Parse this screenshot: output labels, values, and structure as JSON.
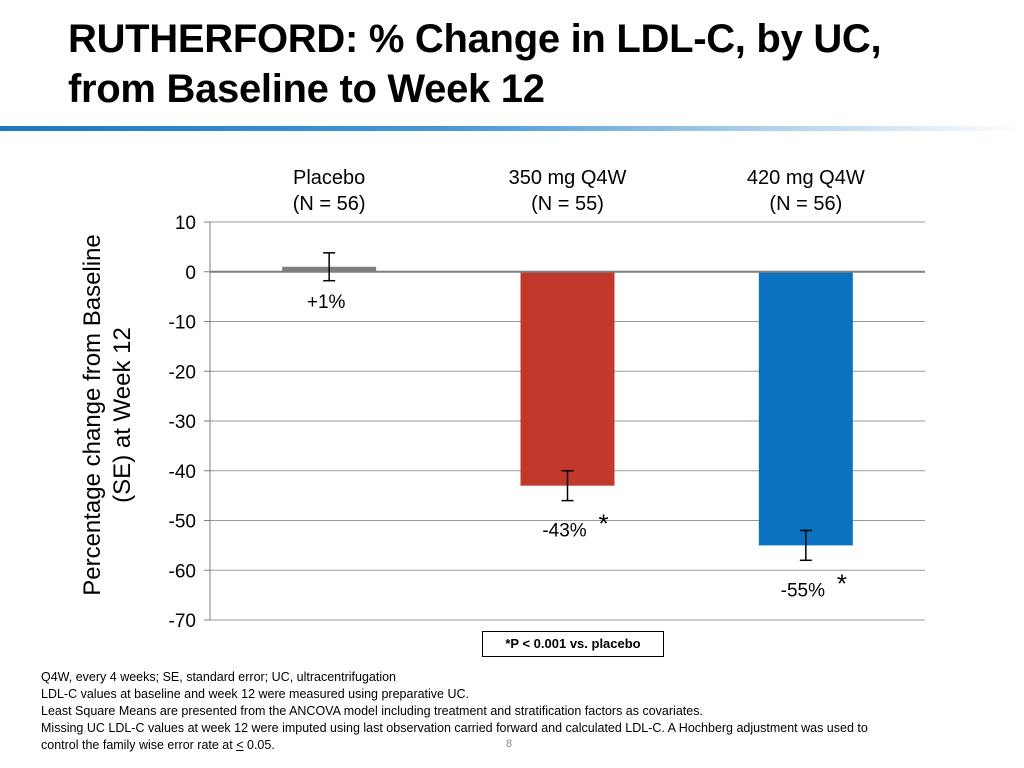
{
  "slide": {
    "title_line1": "RUTHERFORD: % Change in LDL-C, by UC,",
    "title_line2": "from Baseline to Week 12",
    "page_number": "8"
  },
  "chart_data": {
    "type": "bar",
    "ylabel_line1": "Percentage change from Baseline",
    "ylabel_line2": "(SE) at Week 12",
    "ylim": [
      -70,
      10
    ],
    "yticks": [
      10,
      0,
      -10,
      -20,
      -30,
      -40,
      -50,
      -60,
      -70
    ],
    "grid": true,
    "categories": [
      {
        "name": "Placebo",
        "n": "(N = 56)"
      },
      {
        "name": "350 mg Q4W",
        "n": "(N = 55)"
      },
      {
        "name": "420 mg Q4W",
        "n": "(N = 56)"
      }
    ],
    "values": [
      1,
      -43,
      -55
    ],
    "se": [
      2.8,
      3.0,
      3.0
    ],
    "bar_colors": [
      "#7f7f7f",
      "#c0392b",
      "#0b72c1"
    ],
    "data_labels": [
      "+1%",
      "-43%",
      "-55%"
    ],
    "significance_marks": [
      "",
      "*",
      "*"
    ]
  },
  "footnote_box": "*P < 0.001 vs. placebo",
  "notes": {
    "line1": "Q4W, every 4 weeks; SE, standard error; UC, ultracentrifugation",
    "line2": "LDL-C values at baseline and week 12 were measured using preparative UC.",
    "line3": "Least Square Means are presented from the ANCOVA model including treatment and stratification factors as covariates.",
    "line4": "Missing UC LDL-C values at week 12 were imputed using last observation carried forward and calculated LDL-C.  A Hochberg adjustment was used to",
    "line5_prefix": "control the family wise error rate at ",
    "line5_symbol": "<",
    "line5_suffix": " 0.05."
  }
}
